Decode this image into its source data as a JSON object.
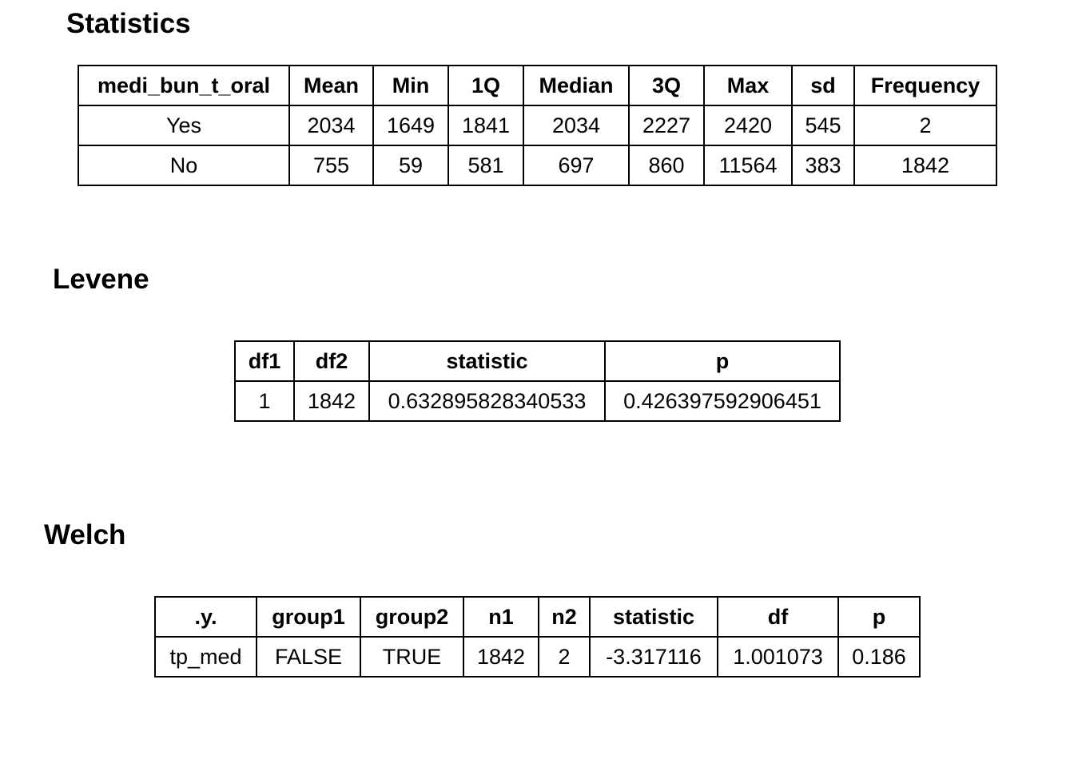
{
  "statistics": {
    "title": "Statistics",
    "headers": [
      "medi_bun_t_oral",
      "Mean",
      "Min",
      "1Q",
      "Median",
      "3Q",
      "Max",
      "sd",
      "Frequency"
    ],
    "rows": [
      [
        "Yes",
        "2034",
        "1649",
        "1841",
        "2034",
        "2227",
        "2420",
        "545",
        "2"
      ],
      [
        "No",
        "755",
        "59",
        "581",
        "697",
        "860",
        "11564",
        "383",
        "1842"
      ]
    ]
  },
  "levene": {
    "title": "Levene",
    "headers": [
      "df1",
      "df2",
      "statistic",
      "p"
    ],
    "rows": [
      [
        "1",
        "1842",
        "0.632895828340533",
        "0.426397592906451"
      ]
    ]
  },
  "welch": {
    "title": "Welch",
    "headers": [
      ".y.",
      "group1",
      "group2",
      "n1",
      "n2",
      "statistic",
      "df",
      "p"
    ],
    "rows": [
      [
        "tp_med",
        "FALSE",
        "TRUE",
        "1842",
        "2",
        "-3.317116",
        "1.001073",
        "0.186"
      ]
    ]
  }
}
